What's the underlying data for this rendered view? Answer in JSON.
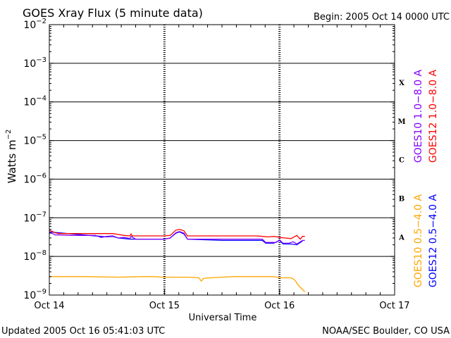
{
  "chart_data": {
    "type": "line",
    "title": "GOES Xray Flux (5 minute data)",
    "begin_label": "Begin:  2005 Oct 14 0000 UTC",
    "xlabel": "Universal Time",
    "ylabel_main": "Watts m",
    "ylabel_exp": "−2",
    "y_scale": "log",
    "ylim": [
      1e-09,
      0.01
    ],
    "xlim": [
      0,
      3
    ],
    "grid": "horizontal lines at each decade, dashed day separators",
    "x_ticks": [
      {
        "value": 0,
        "label": "Oct 14"
      },
      {
        "value": 1,
        "label": "Oct 15"
      },
      {
        "value": 2,
        "label": "Oct 16"
      },
      {
        "value": 3,
        "label": "Oct 17"
      }
    ],
    "y_ticks": [
      {
        "value": 0.01,
        "base": "10",
        "exp": "−2"
      },
      {
        "value": 0.001,
        "base": "10",
        "exp": "−3"
      },
      {
        "value": 0.0001,
        "base": "10",
        "exp": "−4"
      },
      {
        "value": 1e-05,
        "base": "10",
        "exp": "−5"
      },
      {
        "value": 1e-06,
        "base": "10",
        "exp": "−6"
      },
      {
        "value": 1e-07,
        "base": "10",
        "exp": "−7"
      },
      {
        "value": 1e-08,
        "base": "10",
        "exp": "−8"
      },
      {
        "value": 1e-09,
        "base": "10",
        "exp": "−9"
      }
    ],
    "flare_classes": [
      {
        "label": "X",
        "value": 0.00032
      },
      {
        "label": "M",
        "value": 3.2e-05
      },
      {
        "label": "C",
        "value": 3.2e-06
      },
      {
        "label": "B",
        "value": 3.2e-07
      },
      {
        "label": "A",
        "value": 3.2e-08
      }
    ],
    "legend": {
      "right_top_outer": {
        "text": "GOES12 1.0−8.0 A",
        "color": "#ff0000"
      },
      "right_top_inner": {
        "text": "GOES10 1.0−8.0 A",
        "color": "#7f00ff"
      },
      "right_bottom_outer": {
        "text": "GOES12 0.5−4.0 A",
        "color": "#0000ff"
      },
      "right_bottom_inner": {
        "text": "GOES10 0.5−4.0 A",
        "color": "#ffa500"
      }
    },
    "series": [
      {
        "name": "GOES12 1.0−8.0 A",
        "color": "#ff0000",
        "x": [
          0,
          0.02,
          0.05,
          0.08,
          0.3,
          0.45,
          0.55,
          0.6,
          0.65,
          0.7,
          0.71,
          0.72,
          0.75,
          1.0,
          1.05,
          1.1,
          1.13,
          1.17,
          1.2,
          1.5,
          1.8,
          1.85,
          1.9,
          1.95,
          1.98,
          2.0,
          2.05,
          2.1,
          2.15,
          2.18,
          2.2,
          2.22
        ],
        "y": [
          4.8e-08,
          4.5e-08,
          4.1e-08,
          3.9e-08,
          3.9e-08,
          3.9e-08,
          3.9e-08,
          3.7e-08,
          3.5e-08,
          3.4e-08,
          3.8e-08,
          3.4e-08,
          3.4e-08,
          3.4e-08,
          3.5e-08,
          4.8e-08,
          5e-08,
          4.6e-08,
          3.4e-08,
          3.4e-08,
          3.4e-08,
          3.3e-08,
          3.2e-08,
          3.3e-08,
          3.2e-08,
          3.1e-08,
          3e-08,
          2.9e-08,
          3.5e-08,
          2.8e-08,
          3.3e-08,
          3.3e-08
        ]
      },
      {
        "name": "GOES10 1.0−8.0 A",
        "color": "#7f00ff",
        "x": [
          0,
          0.02,
          0.05,
          0.08,
          0.2,
          0.4,
          0.45,
          0.5,
          0.55,
          0.6,
          0.65,
          0.7,
          0.71,
          0.75,
          1.0,
          1.05,
          1.1,
          1.13,
          1.17,
          1.2,
          1.5,
          1.85,
          1.88,
          1.92,
          1.97,
          2.0,
          2.03,
          2.08,
          2.12,
          2.15,
          2.2,
          2.22
        ],
        "y": [
          4.2e-08,
          4e-08,
          3.6e-08,
          3.6e-08,
          3.5e-08,
          3.5e-08,
          3.1e-08,
          3.3e-08,
          3.4e-08,
          3e-08,
          3.1e-08,
          2.9e-08,
          3.3e-08,
          2.8e-08,
          2.8e-08,
          3e-08,
          4.1e-08,
          4.4e-08,
          4e-08,
          2.8e-08,
          2.8e-08,
          2.8e-08,
          2.3e-08,
          2.3e-08,
          2.3e-08,
          2.7e-08,
          2.2e-08,
          2.2e-08,
          2.4e-08,
          2.1e-08,
          2.6e-08,
          2.6e-08
        ]
      },
      {
        "name": "GOES12 0.5−4.0 A",
        "color": "#0000ff",
        "x": [
          0,
          0.3,
          0.45,
          0.5,
          0.55,
          0.6,
          0.7,
          1.0,
          1.05,
          1.1,
          1.13,
          1.17,
          1.2,
          1.5,
          1.85,
          1.88,
          1.95,
          2.0,
          2.03,
          2.1,
          2.15,
          2.2
        ],
        "y": [
          4.3e-08,
          3.6e-08,
          3.3e-08,
          3.2e-08,
          3.3e-08,
          3e-08,
          2.8e-08,
          2.8e-08,
          3e-08,
          4e-08,
          4.3e-08,
          3.8e-08,
          2.8e-08,
          2.6e-08,
          2.6e-08,
          2.2e-08,
          2.2e-08,
          2.6e-08,
          2.1e-08,
          2.1e-08,
          2e-08,
          2.5e-08
        ]
      },
      {
        "name": "GOES10 0.5−4.0 A",
        "color": "#ffa500",
        "x": [
          0,
          0.3,
          0.6,
          0.8,
          0.9,
          1.0,
          1.1,
          1.2,
          1.3,
          1.32,
          1.34,
          1.4,
          1.6,
          1.8,
          1.95,
          2.0,
          2.05,
          2.1,
          2.13,
          2.17,
          2.2,
          2.22
        ],
        "y": [
          3e-09,
          3e-09,
          2.9e-09,
          3e-09,
          3e-09,
          2.9e-09,
          2.9e-09,
          2.9e-09,
          2.8e-09,
          2.3e-09,
          2.7e-09,
          2.8e-09,
          3e-09,
          3e-09,
          3e-09,
          2.8e-09,
          2.8e-09,
          2.8e-09,
          2.5e-09,
          1.7e-09,
          1.4e-09,
          1.2e-09
        ]
      }
    ]
  },
  "footer": {
    "updated": "Updated 2005 Oct 16 05:41:03 UTC",
    "credit": "NOAA/SEC Boulder, CO USA"
  }
}
